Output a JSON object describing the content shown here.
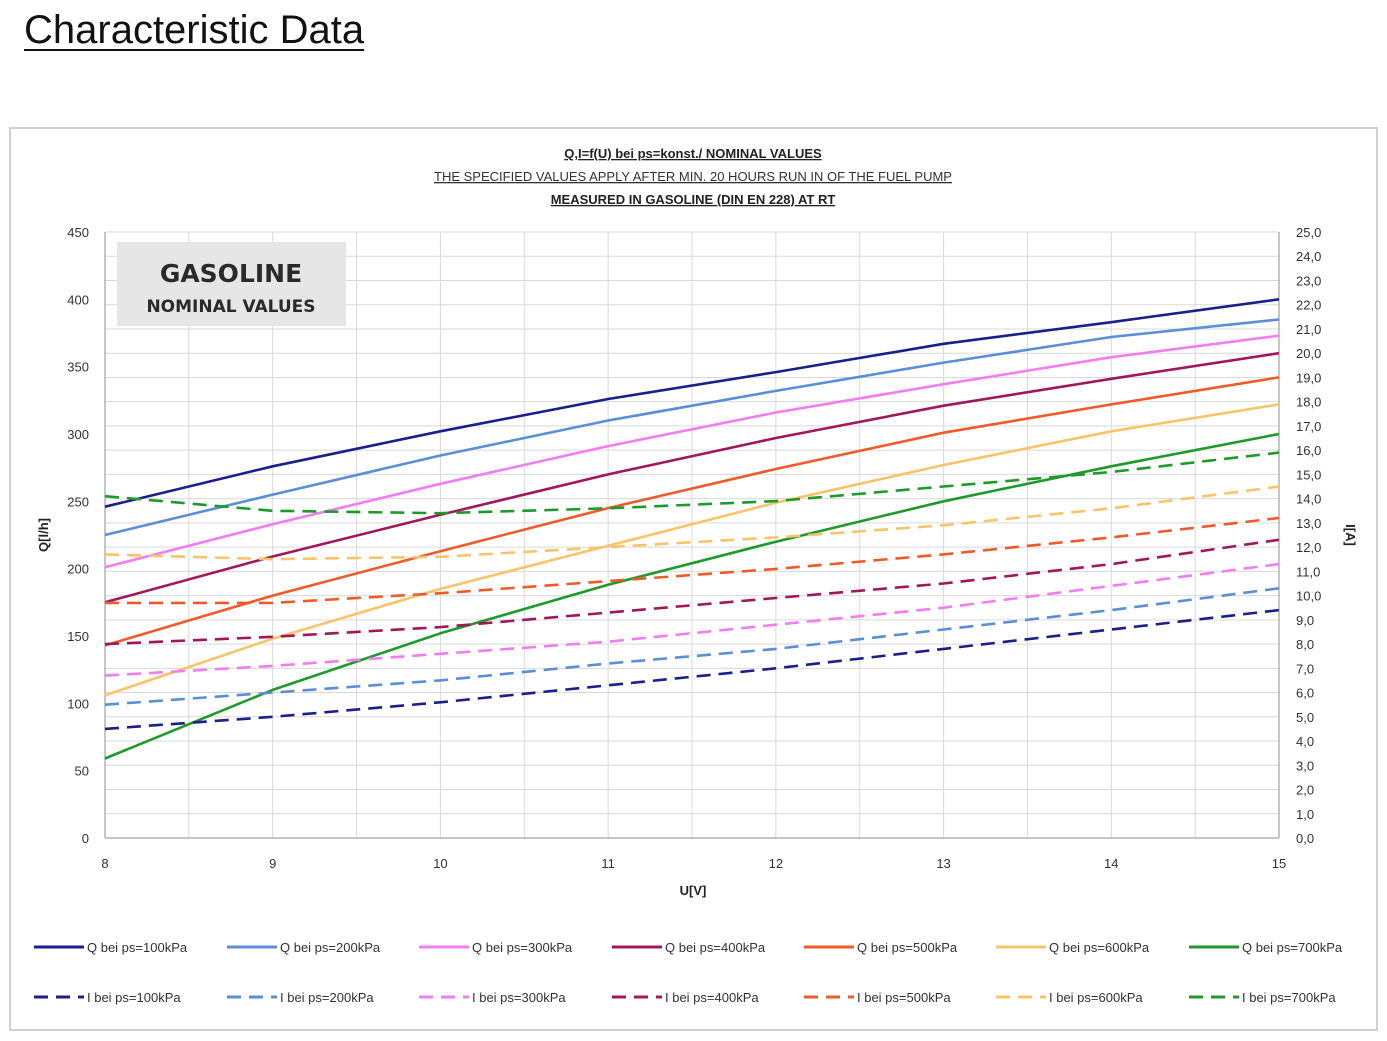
{
  "page": {
    "heading": "Characteristic Data"
  },
  "chart_data": {
    "type": "line",
    "title_lines": [
      "Q,I=f(U) bei ps=konst./ NOMINAL VALUES",
      "THE SPECIFIED VALUES APPLY AFTER MIN. 20 HOURS RUN IN OF THE FUEL PUMP",
      "MEASURED IN GASOLINE (DIN EN 228) AT RT"
    ],
    "box_title": "GASOLINE",
    "box_subtitle": "NOMINAL VALUES",
    "xlabel": "U[V]",
    "ylabel_left": "Q[l/h]",
    "ylabel_right": "I[A]",
    "xlim": [
      8,
      15
    ],
    "ylim_left": [
      0,
      450
    ],
    "ylim_right": [
      0,
      25
    ],
    "x_ticks": [
      "8",
      "9",
      "10",
      "11",
      "12",
      "13",
      "14",
      "15"
    ],
    "y_ticks_left": [
      "0",
      "50",
      "100",
      "150",
      "200",
      "250",
      "300",
      "350",
      "400",
      "450"
    ],
    "y_ticks_right": [
      "0,0",
      "1,0",
      "2,0",
      "3,0",
      "4,0",
      "5,0",
      "6,0",
      "7,0",
      "8,0",
      "9,0",
      "10,0",
      "11,0",
      "12,0",
      "13,0",
      "14,0",
      "15,0",
      "16,0",
      "17,0",
      "18,0",
      "19,0",
      "20,0",
      "21,0",
      "22,0",
      "23,0",
      "24,0",
      "25,0"
    ],
    "grid": true,
    "legend_position": "bottom",
    "x": [
      8,
      9,
      10,
      11,
      12,
      13,
      14,
      15
    ],
    "series": [
      {
        "name": "Q  bei ps=100kPa",
        "axis": "left",
        "dash": false,
        "color": "#1a1f8c",
        "values": [
          246,
          276,
          302,
          326,
          346,
          367,
          383,
          400
        ]
      },
      {
        "name": "Q  bei ps=200kPa",
        "axis": "left",
        "dash": false,
        "color": "#5b8ed8",
        "values": [
          225,
          255,
          284,
          310,
          332,
          353,
          372,
          385
        ]
      },
      {
        "name": "Q  bei ps=300kPa",
        "axis": "left",
        "dash": false,
        "color": "#f27df2",
        "values": [
          201,
          233,
          263,
          291,
          316,
          337,
          357,
          373
        ]
      },
      {
        "name": "Q  bei ps=400kPa",
        "axis": "left",
        "dash": false,
        "color": "#a0175a",
        "values": [
          175,
          209,
          240,
          270,
          297,
          321,
          341,
          360
        ]
      },
      {
        "name": "Q  bei ps=500kPa",
        "axis": "left",
        "dash": false,
        "color": "#f05a28",
        "values": [
          143,
          180,
          213,
          245,
          274,
          301,
          322,
          342
        ]
      },
      {
        "name": "Q  bei ps=600kPa",
        "axis": "left",
        "dash": false,
        "color": "#f7c46a",
        "values": [
          106,
          148,
          185,
          217,
          249,
          277,
          302,
          322
        ]
      },
      {
        "name": "Q  bei ps=700kPa",
        "axis": "left",
        "dash": false,
        "color": "#1e9a2a",
        "values": [
          59,
          110,
          152,
          188,
          220,
          250,
          276,
          300
        ]
      },
      {
        "name": "I  bei ps=100kPa",
        "axis": "right",
        "dash": true,
        "color": "#1a1f8c",
        "values": [
          4.5,
          5.0,
          5.6,
          6.3,
          7.0,
          7.8,
          8.6,
          9.4
        ]
      },
      {
        "name": "I  bei ps=200kPa",
        "axis": "right",
        "dash": true,
        "color": "#5b8ed8",
        "values": [
          5.5,
          6.0,
          6.5,
          7.2,
          7.8,
          8.6,
          9.4,
          10.3
        ]
      },
      {
        "name": "I  bei ps=300kPa",
        "axis": "right",
        "dash": true,
        "color": "#f27df2",
        "values": [
          6.7,
          7.1,
          7.6,
          8.1,
          8.8,
          9.5,
          10.4,
          11.3
        ]
      },
      {
        "name": "I  bei ps=400kPa",
        "axis": "right",
        "dash": true,
        "color": "#a0175a",
        "values": [
          8.0,
          8.3,
          8.7,
          9.3,
          9.9,
          10.5,
          11.3,
          12.3
        ]
      },
      {
        "name": "I  bei ps=500kPa",
        "axis": "right",
        "dash": true,
        "color": "#f05a28",
        "values": [
          9.7,
          9.7,
          10.1,
          10.6,
          11.1,
          11.7,
          12.4,
          13.2
        ]
      },
      {
        "name": "I  bei ps=600kPa",
        "axis": "right",
        "dash": true,
        "color": "#f7c46a",
        "values": [
          11.7,
          11.5,
          11.6,
          12.0,
          12.4,
          12.9,
          13.6,
          14.5
        ]
      },
      {
        "name": "I  bei ps=700kPa",
        "axis": "right",
        "dash": true,
        "color": "#1e9a2a",
        "values": [
          14.1,
          13.5,
          13.4,
          13.6,
          13.9,
          14.5,
          15.1,
          15.9
        ]
      }
    ]
  }
}
